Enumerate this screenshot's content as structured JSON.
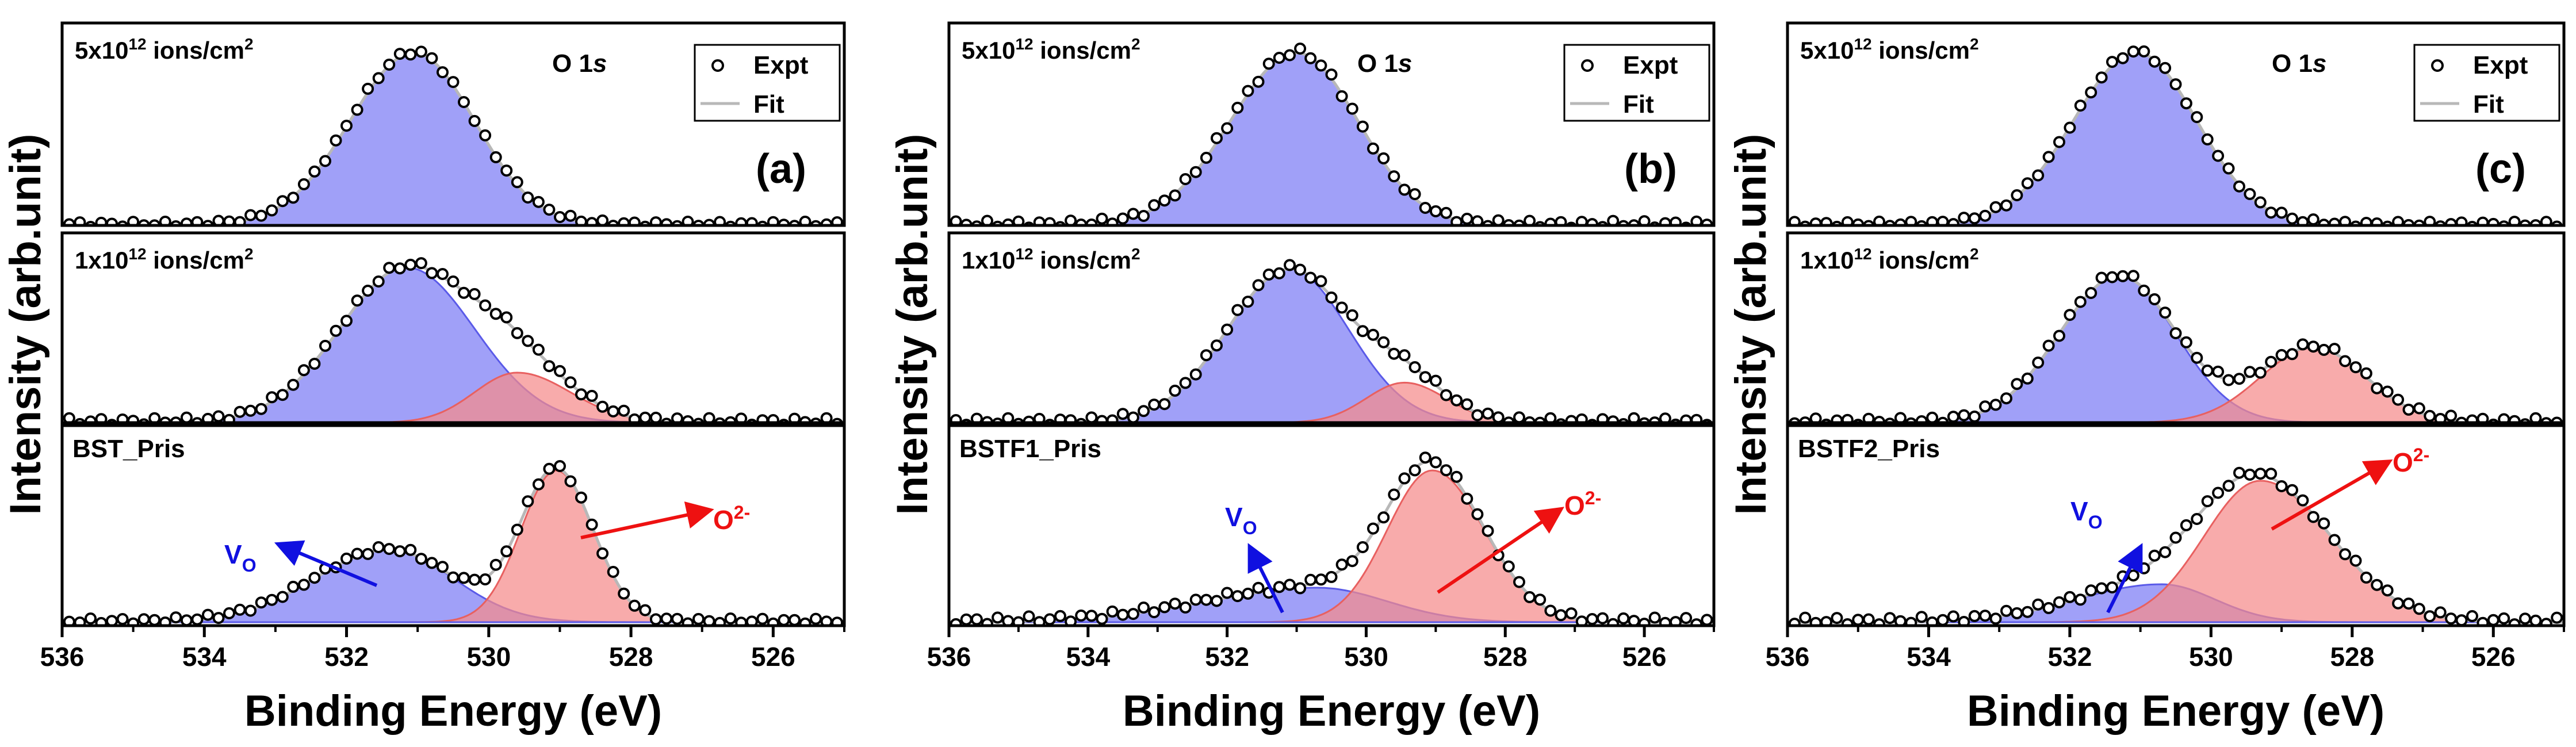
{
  "colors": {
    "vacancy_fill": "#7b7bf5",
    "vacancy_line": "#5a5ae8",
    "oxide_fill": "#f58a8a",
    "oxide_line": "#e86060",
    "overlap_fill": "#8e5aa8",
    "fit_line": "#b8b8b8",
    "arrow_vo": "#1010e0",
    "arrow_o2": "#ee1111",
    "marker": "#000000"
  },
  "shared": {
    "xlabel": "Binding Energy (eV)",
    "ylabel": "Intensity (arb.unit)",
    "x_ticks": [
      "536",
      "534",
      "532",
      "530",
      "528",
      "526"
    ],
    "legend": {
      "expt": "Expt",
      "fit": "Fit"
    },
    "core_level": "O 1",
    "core_level_orbital": "s",
    "dose_top": "5x10",
    "dose_top_exp": "12",
    "dose_mid": "1x10",
    "dose_mid_exp": "12",
    "dose_unit": " ions/cm",
    "dose_unit_exp": "2",
    "vo_label": "V",
    "vo_sub": "O",
    "o2_label": "O",
    "o2_sup": "2-"
  },
  "chart_data": [
    {
      "type": "line",
      "panel_label": "(a)",
      "sample": "BST_Pris",
      "x_axis": {
        "label": "Binding Energy (eV)",
        "range": [
          536,
          525
        ],
        "reversed": true
      },
      "y_axis": {
        "label": "Intensity (arb.unit)",
        "ticks": false
      },
      "stacks": [
        {
          "name": "5x10^12 ions/cm^2",
          "components": [
            {
              "type": "Vo",
              "center": 531.05,
              "height": 1.0,
              "sigma_left": 0.9,
              "sigma_right": 0.85
            }
          ],
          "expt_noise": 0.015
        },
        {
          "name": "1x10^12 ions/cm^2",
          "components": [
            {
              "type": "Vo",
              "center": 531.15,
              "height": 0.93,
              "sigma_left": 0.95,
              "sigma_right": 0.95
            },
            {
              "type": "O2-",
              "center": 529.6,
              "height": 0.3,
              "sigma_left": 0.6,
              "sigma_right": 0.75
            }
          ],
          "expt_noise": 0.02
        },
        {
          "name": "BST_Pris",
          "components": [
            {
              "type": "Vo",
              "center": 531.4,
              "height": 0.42,
              "sigma_left": 1.05,
              "sigma_right": 0.9
            },
            {
              "type": "O2-",
              "center": 529.05,
              "height": 0.88,
              "sigma_left": 0.5,
              "sigma_right": 0.52
            }
          ],
          "expt_noise": 0.015
        }
      ]
    },
    {
      "type": "line",
      "panel_label": "(b)",
      "sample": "BSTF1_Pris",
      "x_axis": {
        "label": "Binding Energy (eV)",
        "range": [
          536,
          525
        ],
        "reversed": true
      },
      "y_axis": {
        "label": "Intensity (arb.unit)",
        "ticks": false
      },
      "stacks": [
        {
          "name": "5x10^12 ions/cm^2",
          "components": [
            {
              "type": "Vo",
              "center": 531.0,
              "height": 1.0,
              "sigma_left": 0.95,
              "sigma_right": 0.88
            }
          ],
          "expt_noise": 0.02
        },
        {
          "name": "1x10^12 ions/cm^2",
          "components": [
            {
              "type": "Vo",
              "center": 531.1,
              "height": 0.92,
              "sigma_left": 0.9,
              "sigma_right": 0.85
            },
            {
              "type": "O2-",
              "center": 529.45,
              "height": 0.24,
              "sigma_left": 0.55,
              "sigma_right": 0.6
            }
          ],
          "expt_noise": 0.02
        },
        {
          "name": "BSTF1_Pris",
          "components": [
            {
              "type": "Vo",
              "center": 530.7,
              "height": 0.2,
              "sigma_left": 1.6,
              "sigma_right": 1.0
            },
            {
              "type": "O2-",
              "center": 529.05,
              "height": 0.88,
              "sigma_left": 0.65,
              "sigma_right": 0.75
            }
          ],
          "expt_noise": 0.02
        }
      ]
    },
    {
      "type": "line",
      "panel_label": "(c)",
      "sample": "BSTF2_Pris",
      "x_axis": {
        "label": "Binding Energy (eV)",
        "range": [
          536,
          525
        ],
        "reversed": true
      },
      "y_axis": {
        "label": "Intensity (arb.unit)",
        "ticks": false
      },
      "stacks": [
        {
          "name": "5x10^12 ions/cm^2",
          "components": [
            {
              "type": "Vo",
              "center": 531.05,
              "height": 1.0,
              "sigma_left": 0.9,
              "sigma_right": 0.85
            }
          ],
          "expt_noise": 0.015
        },
        {
          "name": "1x10^12 ions/cm^2",
          "components": [
            {
              "type": "Vo",
              "center": 531.3,
              "height": 0.88,
              "sigma_left": 0.85,
              "sigma_right": 0.8
            },
            {
              "type": "O2-",
              "center": 528.55,
              "height": 0.45,
              "sigma_left": 0.75,
              "sigma_right": 0.75
            }
          ],
          "expt_noise": 0.02
        },
        {
          "name": "BSTF2_Pris",
          "components": [
            {
              "type": "Vo",
              "center": 530.7,
              "height": 0.22,
              "sigma_left": 1.2,
              "sigma_right": 0.75
            },
            {
              "type": "O2-",
              "center": 529.3,
              "height": 0.82,
              "sigma_left": 0.8,
              "sigma_right": 1.0
            }
          ],
          "expt_noise": 0.02
        }
      ]
    }
  ]
}
